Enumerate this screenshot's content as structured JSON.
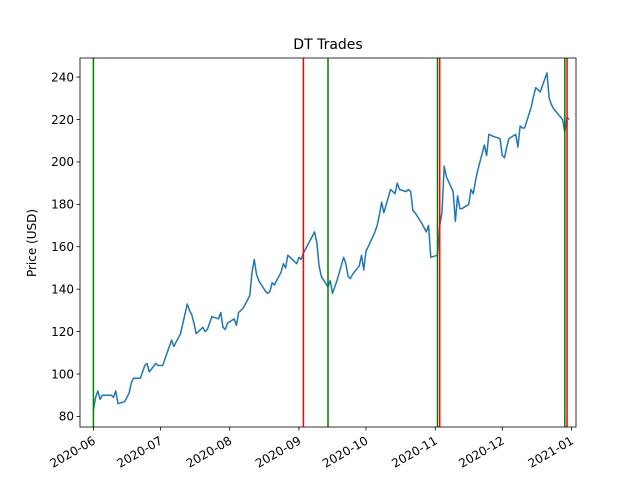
{
  "chart_data": {
    "type": "line",
    "title": "DT Trades",
    "xlabel": "",
    "ylabel": "Price (USD)",
    "grid": false,
    "xlim": [
      "2020-05-26",
      "2021-01-03"
    ],
    "ylim": [
      75,
      249
    ],
    "x_ticks": [
      "2020-06",
      "2020-07",
      "2020-08",
      "2020-09",
      "2020-10",
      "2020-11",
      "2020-12",
      "2021-01"
    ],
    "y_ticks": [
      80,
      100,
      120,
      140,
      160,
      180,
      200,
      220,
      240
    ],
    "series": [
      {
        "color": "#1f77b4",
        "points": [
          [
            "2020-06-01",
            83
          ],
          [
            "2020-06-02",
            89
          ],
          [
            "2020-06-03",
            92
          ],
          [
            "2020-06-04",
            88
          ],
          [
            "2020-06-05",
            90
          ],
          [
            "2020-06-08",
            90
          ],
          [
            "2020-06-09",
            90
          ],
          [
            "2020-06-10",
            89
          ],
          [
            "2020-06-11",
            92
          ],
          [
            "2020-06-12",
            86
          ],
          [
            "2020-06-15",
            87
          ],
          [
            "2020-06-16",
            89
          ],
          [
            "2020-06-17",
            91
          ],
          [
            "2020-06-18",
            96
          ],
          [
            "2020-06-19",
            98
          ],
          [
            "2020-06-22",
            98
          ],
          [
            "2020-06-23",
            101
          ],
          [
            "2020-06-24",
            104
          ],
          [
            "2020-06-25",
            105
          ],
          [
            "2020-06-26",
            101
          ],
          [
            "2020-06-29",
            105
          ],
          [
            "2020-06-30",
            104
          ],
          [
            "2020-07-01",
            104
          ],
          [
            "2020-07-02",
            104
          ],
          [
            "2020-07-06",
            116
          ],
          [
            "2020-07-07",
            113
          ],
          [
            "2020-07-08",
            115
          ],
          [
            "2020-07-09",
            117
          ],
          [
            "2020-07-10",
            119
          ],
          [
            "2020-07-13",
            133
          ],
          [
            "2020-07-14",
            130
          ],
          [
            "2020-07-15",
            128
          ],
          [
            "2020-07-16",
            124
          ],
          [
            "2020-07-17",
            119
          ],
          [
            "2020-07-20",
            122
          ],
          [
            "2020-07-21",
            120
          ],
          [
            "2020-07-22",
            121
          ],
          [
            "2020-07-23",
            124
          ],
          [
            "2020-07-24",
            127
          ],
          [
            "2020-07-27",
            126
          ],
          [
            "2020-07-28",
            129
          ],
          [
            "2020-07-29",
            122
          ],
          [
            "2020-07-30",
            121
          ],
          [
            "2020-07-31",
            124
          ],
          [
            "2020-08-03",
            126
          ],
          [
            "2020-08-04",
            123
          ],
          [
            "2020-08-05",
            129
          ],
          [
            "2020-08-06",
            130
          ],
          [
            "2020-08-07",
            131
          ],
          [
            "2020-08-10",
            137
          ],
          [
            "2020-08-11",
            148
          ],
          [
            "2020-08-12",
            154
          ],
          [
            "2020-08-13",
            147
          ],
          [
            "2020-08-14",
            144
          ],
          [
            "2020-08-17",
            139
          ],
          [
            "2020-08-18",
            138
          ],
          [
            "2020-08-19",
            139
          ],
          [
            "2020-08-20",
            143
          ],
          [
            "2020-08-21",
            142
          ],
          [
            "2020-08-24",
            148
          ],
          [
            "2020-08-25",
            152
          ],
          [
            "2020-08-26",
            150
          ],
          [
            "2020-08-27",
            156
          ],
          [
            "2020-08-28",
            155
          ],
          [
            "2020-08-31",
            152
          ],
          [
            "2020-09-01",
            155
          ],
          [
            "2020-09-02",
            154
          ],
          [
            "2020-09-03",
            157
          ],
          [
            "2020-09-04",
            159
          ],
          [
            "2020-09-08",
            167
          ],
          [
            "2020-09-09",
            162
          ],
          [
            "2020-09-10",
            151
          ],
          [
            "2020-09-11",
            146
          ],
          [
            "2020-09-14",
            141
          ],
          [
            "2020-09-15",
            144
          ],
          [
            "2020-09-16",
            138
          ],
          [
            "2020-09-17",
            141
          ],
          [
            "2020-09-18",
            144
          ],
          [
            "2020-09-21",
            155
          ],
          [
            "2020-09-22",
            152
          ],
          [
            "2020-09-23",
            146
          ],
          [
            "2020-09-24",
            145
          ],
          [
            "2020-09-25",
            147
          ],
          [
            "2020-09-28",
            151
          ],
          [
            "2020-09-29",
            156
          ],
          [
            "2020-09-30",
            149
          ],
          [
            "2020-10-01",
            158
          ],
          [
            "2020-10-02",
            160
          ],
          [
            "2020-10-05",
            167
          ],
          [
            "2020-10-06",
            170
          ],
          [
            "2020-10-07",
            175
          ],
          [
            "2020-10-08",
            181
          ],
          [
            "2020-10-09",
            176
          ],
          [
            "2020-10-12",
            187
          ],
          [
            "2020-10-13",
            186
          ],
          [
            "2020-10-14",
            185
          ],
          [
            "2020-10-15",
            190
          ],
          [
            "2020-10-16",
            187
          ],
          [
            "2020-10-19",
            186
          ],
          [
            "2020-10-20",
            187
          ],
          [
            "2020-10-21",
            186
          ],
          [
            "2020-10-22",
            177
          ],
          [
            "2020-10-23",
            176
          ],
          [
            "2020-10-26",
            171
          ],
          [
            "2020-10-27",
            169
          ],
          [
            "2020-10-28",
            167
          ],
          [
            "2020-10-29",
            170
          ],
          [
            "2020-10-30",
            155
          ],
          [
            "2020-11-02",
            156
          ],
          [
            "2020-11-03",
            170
          ],
          [
            "2020-11-04",
            176
          ],
          [
            "2020-11-05",
            198
          ],
          [
            "2020-11-06",
            193
          ],
          [
            "2020-11-09",
            186
          ],
          [
            "2020-11-10",
            172
          ],
          [
            "2020-11-11",
            184
          ],
          [
            "2020-11-12",
            178
          ],
          [
            "2020-11-13",
            178
          ],
          [
            "2020-11-16",
            180
          ],
          [
            "2020-11-17",
            187
          ],
          [
            "2020-11-18",
            185
          ],
          [
            "2020-11-19",
            191
          ],
          [
            "2020-11-20",
            196
          ],
          [
            "2020-11-23",
            208
          ],
          [
            "2020-11-24",
            203
          ],
          [
            "2020-11-25",
            213
          ],
          [
            "2020-11-27",
            212
          ],
          [
            "2020-11-30",
            211
          ],
          [
            "2020-12-01",
            203
          ],
          [
            "2020-12-02",
            202
          ],
          [
            "2020-12-03",
            207
          ],
          [
            "2020-12-04",
            211
          ],
          [
            "2020-12-07",
            213
          ],
          [
            "2020-12-08",
            207
          ],
          [
            "2020-12-09",
            217
          ],
          [
            "2020-12-10",
            216
          ],
          [
            "2020-12-11",
            216
          ],
          [
            "2020-12-14",
            226
          ],
          [
            "2020-12-15",
            231
          ],
          [
            "2020-12-16",
            235
          ],
          [
            "2020-12-17",
            234
          ],
          [
            "2020-12-18",
            233
          ],
          [
            "2020-12-21",
            242
          ],
          [
            "2020-12-22",
            230
          ],
          [
            "2020-12-23",
            227
          ],
          [
            "2020-12-24",
            225
          ],
          [
            "2020-12-28",
            220
          ],
          [
            "2020-12-29",
            214
          ],
          [
            "2020-12-30",
            221
          ],
          [
            "2020-12-31",
            220
          ]
        ]
      }
    ],
    "vertical_lines": [
      {
        "date": "2020-06-01",
        "color": "#008000"
      },
      {
        "date": "2020-09-03",
        "color": "#ff0000"
      },
      {
        "date": "2020-09-14",
        "color": "#008000"
      },
      {
        "date": "2020-11-02",
        "color": "#008000"
      },
      {
        "date": "2020-11-03",
        "color": "#ff0000"
      },
      {
        "date": "2020-12-29",
        "color": "#008000"
      },
      {
        "date": "2020-12-30",
        "color": "#ff0000"
      }
    ]
  }
}
